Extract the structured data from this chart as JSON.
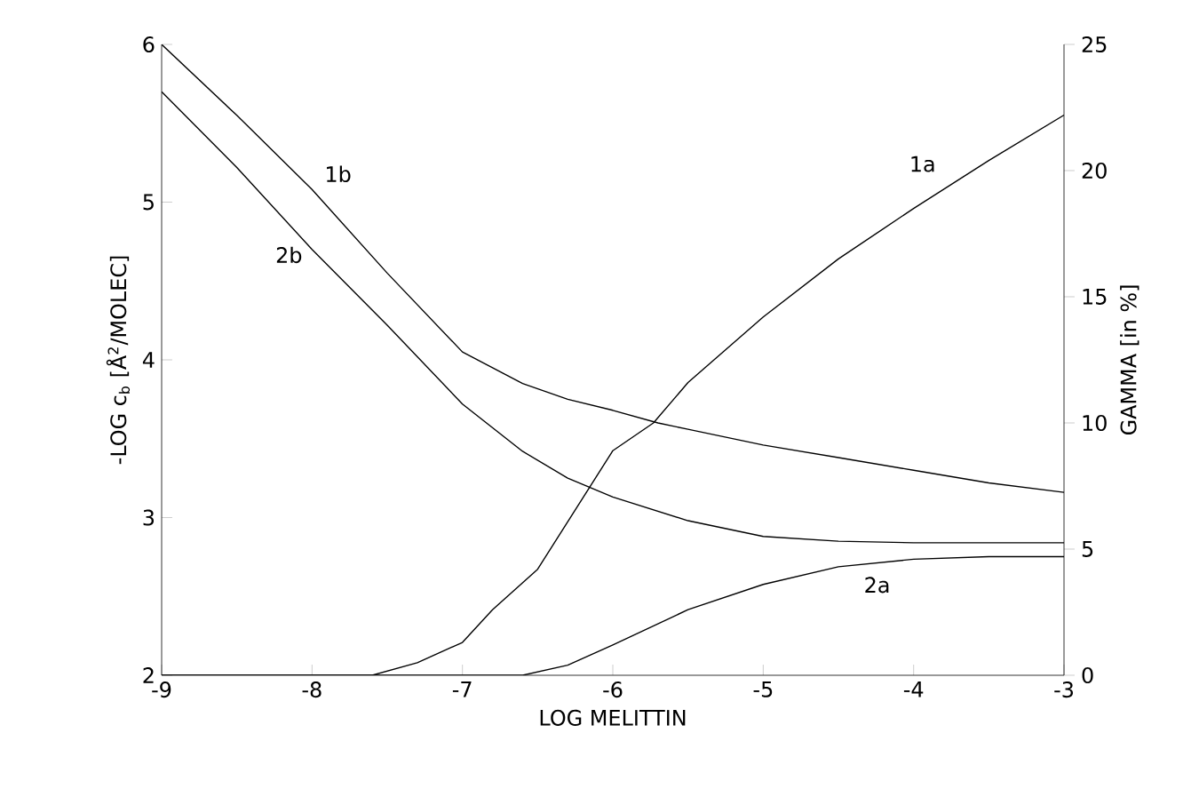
{
  "chart_data": {
    "type": "line",
    "xlabel": "LOG MELITTIN",
    "ylabel": "-LOG c$_{b}$ [Å$^{2}$/MOLEC]",
    "y2label": "GAMMA [in %]",
    "xlim": [
      -9,
      -3
    ],
    "xticks": [
      -9,
      -8,
      -7,
      -6,
      -5,
      -4,
      -3
    ],
    "ylim": [
      2,
      6
    ],
    "yticks": [
      2,
      3,
      4,
      5,
      6
    ],
    "y2lim": [
      0,
      25
    ],
    "y2ticks": [
      0,
      5,
      10,
      15,
      20,
      25
    ],
    "grid": false,
    "marker": "none",
    "line_style": "solid",
    "series": [
      {
        "name": "1b",
        "color": "#000000",
        "x": [
          -9,
          -8.5,
          -8,
          -7.5,
          -7,
          -6.6,
          -6.3,
          -6,
          -5.7,
          -5.5,
          -5,
          -4.5,
          -4,
          -3.5,
          -3
        ],
        "values": [
          6.0,
          5.55,
          5.08,
          4.55,
          4.05,
          3.85,
          3.75,
          3.68,
          3.6,
          3.56,
          3.46,
          3.38,
          3.3,
          3.22,
          3.16
        ]
      },
      {
        "name": "2b",
        "color": "#000000",
        "x": [
          -9,
          -8.5,
          -8,
          -7.5,
          -7,
          -6.6,
          -6.3,
          -6,
          -5.5,
          -5,
          -4.5,
          -4,
          -3.5,
          -3
        ],
        "values": [
          5.7,
          5.22,
          4.7,
          4.22,
          3.72,
          3.42,
          3.25,
          3.13,
          2.98,
          2.88,
          2.85,
          2.84,
          2.84,
          2.84
        ]
      },
      {
        "name": "1a",
        "color": "#000000",
        "axis": "y2",
        "x": [
          -9,
          -8,
          -7.6,
          -7.3,
          -7,
          -6.8,
          -6.5,
          -6,
          -5.73,
          -5.5,
          -5,
          -4.5,
          -4,
          -3.5,
          -3
        ],
        "values": [
          0,
          0,
          0,
          0.5,
          1.3,
          2.6,
          4.2,
          8.9,
          10,
          11.6,
          14.2,
          16.5,
          18.5,
          20.4,
          22.2
        ]
      },
      {
        "name": "2a",
        "color": "#000000",
        "axis": "y2",
        "x": [
          -9,
          -7,
          -6.6,
          -6.3,
          -6,
          -5.5,
          -5,
          -4.5,
          -4,
          -3.5,
          -3
        ],
        "values": [
          0,
          0,
          0,
          0.4,
          1.2,
          2.6,
          3.6,
          4.3,
          4.6,
          4.7,
          4.7
        ]
      }
    ]
  }
}
